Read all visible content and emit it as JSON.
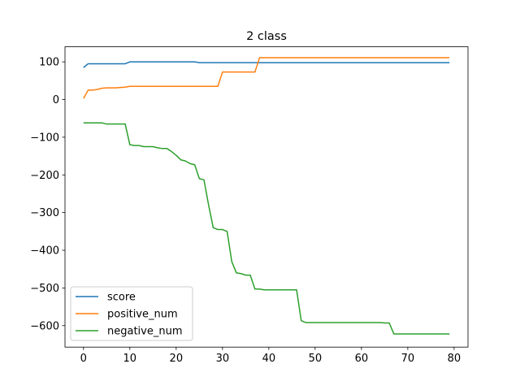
{
  "chart_data": {
    "type": "line",
    "title": "2 class",
    "xlabel": "",
    "ylabel": "",
    "xlim": [
      -4,
      83
    ],
    "ylim": [
      -657,
      140
    ],
    "xticks": [
      0,
      10,
      20,
      30,
      40,
      50,
      60,
      70,
      80
    ],
    "yticks": [
      100,
      0,
      -100,
      -200,
      -300,
      -400,
      -500,
      -600
    ],
    "ytick_labels": [
      "100",
      "0",
      "−100",
      "−200",
      "−300",
      "−400",
      "−500",
      "−600"
    ],
    "grid": false,
    "legend_position": "lower-left",
    "series": [
      {
        "name": "score",
        "color": "#1f77b4",
        "x": [
          0,
          1,
          2,
          3,
          4,
          5,
          6,
          7,
          8,
          9,
          10,
          11,
          12,
          13,
          14,
          15,
          16,
          17,
          18,
          19,
          20,
          21,
          22,
          23,
          24,
          25,
          26,
          27,
          28,
          29,
          30,
          31,
          32,
          33,
          34,
          35,
          36,
          37,
          38,
          39,
          40,
          79
        ],
        "y": [
          85,
          95,
          95,
          95,
          95,
          95,
          95,
          95,
          95,
          95,
          100,
          100,
          100,
          100,
          100,
          100,
          100,
          100,
          100,
          100,
          100,
          100,
          100,
          100,
          100,
          98,
          98,
          98,
          98,
          98,
          98,
          98,
          98,
          98,
          98,
          98,
          98,
          98,
          98,
          98,
          98,
          98
        ]
      },
      {
        "name": "positive_num",
        "color": "#ff7f0e",
        "x": [
          0,
          1,
          2,
          3,
          4,
          5,
          6,
          7,
          8,
          9,
          10,
          11,
          12,
          13,
          14,
          15,
          16,
          17,
          18,
          19,
          20,
          21,
          22,
          23,
          24,
          25,
          26,
          27,
          28,
          29,
          30,
          31,
          32,
          33,
          34,
          35,
          36,
          37,
          38,
          39,
          79
        ],
        "y": [
          3,
          25,
          25,
          27,
          30,
          31,
          31,
          31,
          32,
          33,
          35,
          35,
          35,
          35,
          35,
          35,
          35,
          35,
          35,
          35,
          35,
          35,
          35,
          35,
          35,
          35,
          35,
          35,
          35,
          35,
          73,
          73,
          73,
          73,
          73,
          73,
          73,
          73,
          111,
          111,
          111
        ]
      },
      {
        "name": "negative_num",
        "color": "#2ca02c",
        "x": [
          0,
          1,
          2,
          3,
          4,
          5,
          6,
          7,
          8,
          9,
          10,
          11,
          12,
          13,
          14,
          15,
          16,
          17,
          18,
          19,
          20,
          21,
          22,
          23,
          24,
          25,
          26,
          27,
          28,
          29,
          30,
          31,
          32,
          33,
          34,
          35,
          36,
          37,
          38,
          39,
          40,
          41,
          42,
          43,
          44,
          45,
          46,
          47,
          48,
          49,
          50,
          51,
          52,
          53,
          54,
          55,
          56,
          57,
          58,
          59,
          60,
          61,
          62,
          63,
          64,
          65,
          66,
          67,
          68,
          69,
          70,
          79
        ],
        "y": [
          -62,
          -62,
          -62,
          -62,
          -62,
          -65,
          -65,
          -65,
          -65,
          -65,
          -120,
          -122,
          -122,
          -125,
          -125,
          -125,
          -128,
          -130,
          -130,
          -138,
          -148,
          -160,
          -163,
          -170,
          -173,
          -210,
          -213,
          -280,
          -340,
          -345,
          -345,
          -350,
          -430,
          -460,
          -462,
          -466,
          -466,
          -503,
          -503,
          -505,
          -505,
          -505,
          -505,
          -505,
          -505,
          -505,
          -505,
          -587,
          -592,
          -592,
          -592,
          -592,
          -592,
          -592,
          -592,
          -592,
          -592,
          -592,
          -592,
          -592,
          -592,
          -592,
          -592,
          -592,
          -592,
          -593,
          -593,
          -622,
          -622,
          -622,
          -622,
          -622
        ]
      }
    ]
  }
}
